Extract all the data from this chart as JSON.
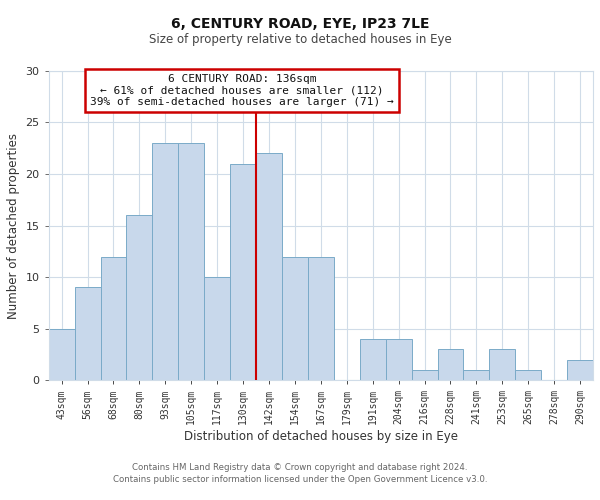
{
  "title": "6, CENTURY ROAD, EYE, IP23 7LE",
  "subtitle": "Size of property relative to detached houses in Eye",
  "xlabel": "Distribution of detached houses by size in Eye",
  "ylabel": "Number of detached properties",
  "bar_labels": [
    "43sqm",
    "56sqm",
    "68sqm",
    "80sqm",
    "93sqm",
    "105sqm",
    "117sqm",
    "130sqm",
    "142sqm",
    "154sqm",
    "167sqm",
    "179sqm",
    "191sqm",
    "204sqm",
    "216sqm",
    "228sqm",
    "241sqm",
    "253sqm",
    "265sqm",
    "278sqm",
    "290sqm"
  ],
  "bar_values": [
    5,
    9,
    12,
    16,
    23,
    23,
    10,
    21,
    22,
    12,
    12,
    0,
    4,
    4,
    1,
    3,
    1,
    3,
    1,
    0,
    2
  ],
  "bar_color": "#c8d8eb",
  "bar_edge_color": "#7aaac8",
  "vline_x": 7.5,
  "vline_color": "#cc0000",
  "ylim": [
    0,
    30
  ],
  "yticks": [
    0,
    5,
    10,
    15,
    20,
    25,
    30
  ],
  "annotation_title": "6 CENTURY ROAD: 136sqm",
  "annotation_line1": "← 61% of detached houses are smaller (112)",
  "annotation_line2": "39% of semi-detached houses are larger (71) →",
  "annotation_box_color": "#ffffff",
  "annotation_box_edge": "#cc0000",
  "footer1": "Contains HM Land Registry data © Crown copyright and database right 2024.",
  "footer2": "Contains public sector information licensed under the Open Government Licence v3.0.",
  "background_color": "#ffffff",
  "grid_color": "#d0dce8"
}
